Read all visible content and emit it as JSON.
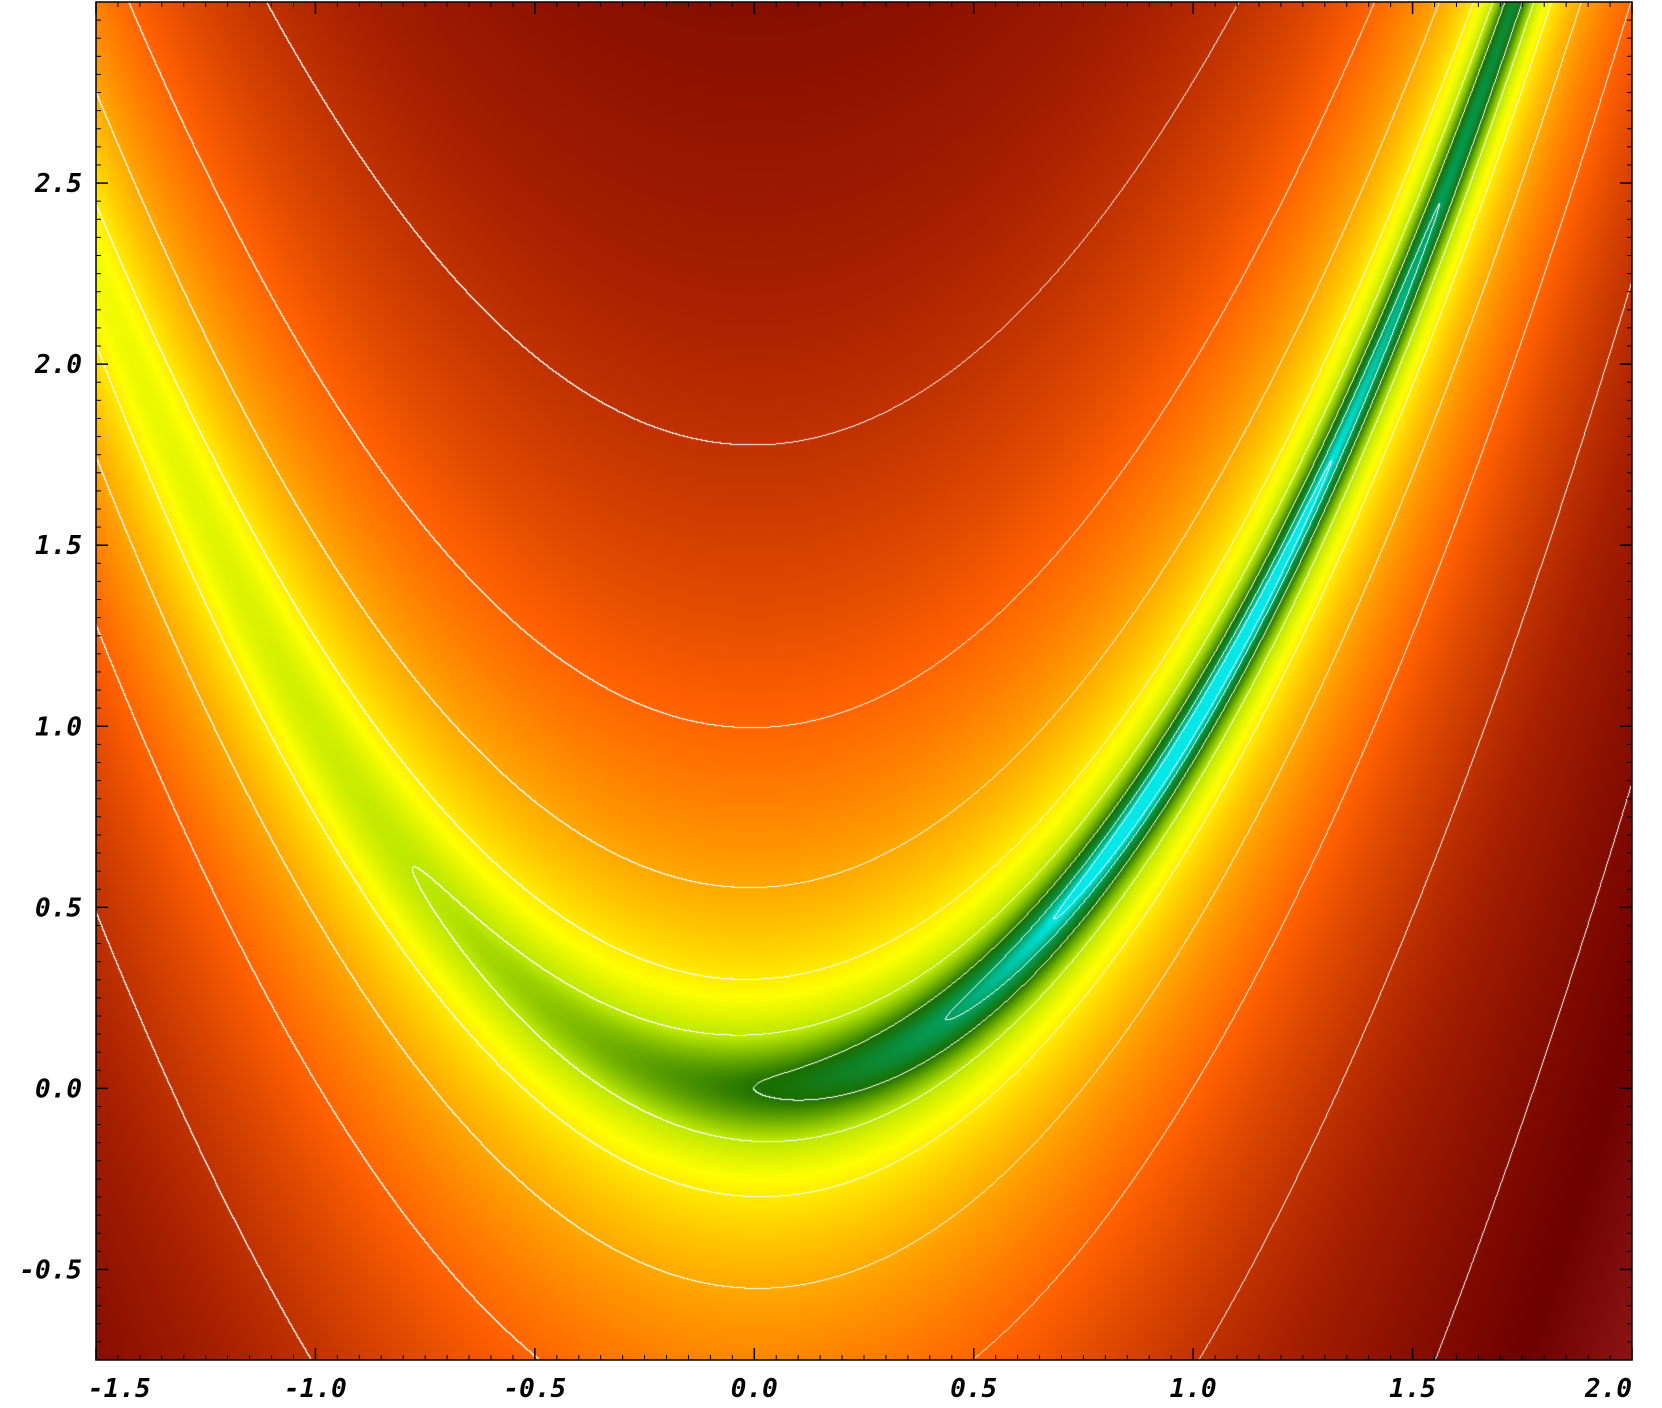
{
  "chart_data": {
    "type": "heatmap",
    "title": "",
    "xlabel": "",
    "ylabel": "",
    "xlim": [
      -1.5,
      2.0
    ],
    "ylim": [
      -0.75,
      3.0
    ],
    "x_ticks": [
      -1.5,
      -1.0,
      -0.5,
      0.0,
      0.5,
      1.0,
      1.5,
      2.0
    ],
    "x_tick_labels": [
      "-1.5",
      "-1.0",
      "-0.5",
      "0.0",
      "0.5",
      "1.0",
      "1.5",
      "2.0"
    ],
    "y_ticks": [
      -0.5,
      0.0,
      0.5,
      1.0,
      1.5,
      2.0,
      2.5
    ],
    "y_tick_labels": [
      "-0.5",
      "0.0",
      "0.5",
      "1.0",
      "1.5",
      "2.0",
      "2.5"
    ],
    "function": "f(x, y) = (1 - x)^2 + 100 (y - x^2)^2",
    "color_scale": "log10(f)",
    "minimum": {
      "x": 1.0,
      "y": 1.0
    },
    "colormap": [
      {
        "stop": 0.0,
        "color": "#00e8e8"
      },
      {
        "stop": 0.1,
        "color": "#00a060"
      },
      {
        "stop": 0.2,
        "color": "#1a6e00"
      },
      {
        "stop": 0.3,
        "color": "#b8e600"
      },
      {
        "stop": 0.38,
        "color": "#ffff00"
      },
      {
        "stop": 0.5,
        "color": "#ffb000"
      },
      {
        "stop": 0.62,
        "color": "#ff6000"
      },
      {
        "stop": 0.75,
        "color": "#a82000"
      },
      {
        "stop": 0.85,
        "color": "#6e0000"
      },
      {
        "stop": 1.0,
        "color": "#e05050"
      }
    ],
    "contour_levels": [
      -1.0,
      -0.5,
      0.0,
      0.5,
      1.0,
      1.5,
      2.0,
      2.5,
      3.0
    ],
    "contour_color": "#ffffff",
    "grid": false,
    "legend": "none"
  }
}
